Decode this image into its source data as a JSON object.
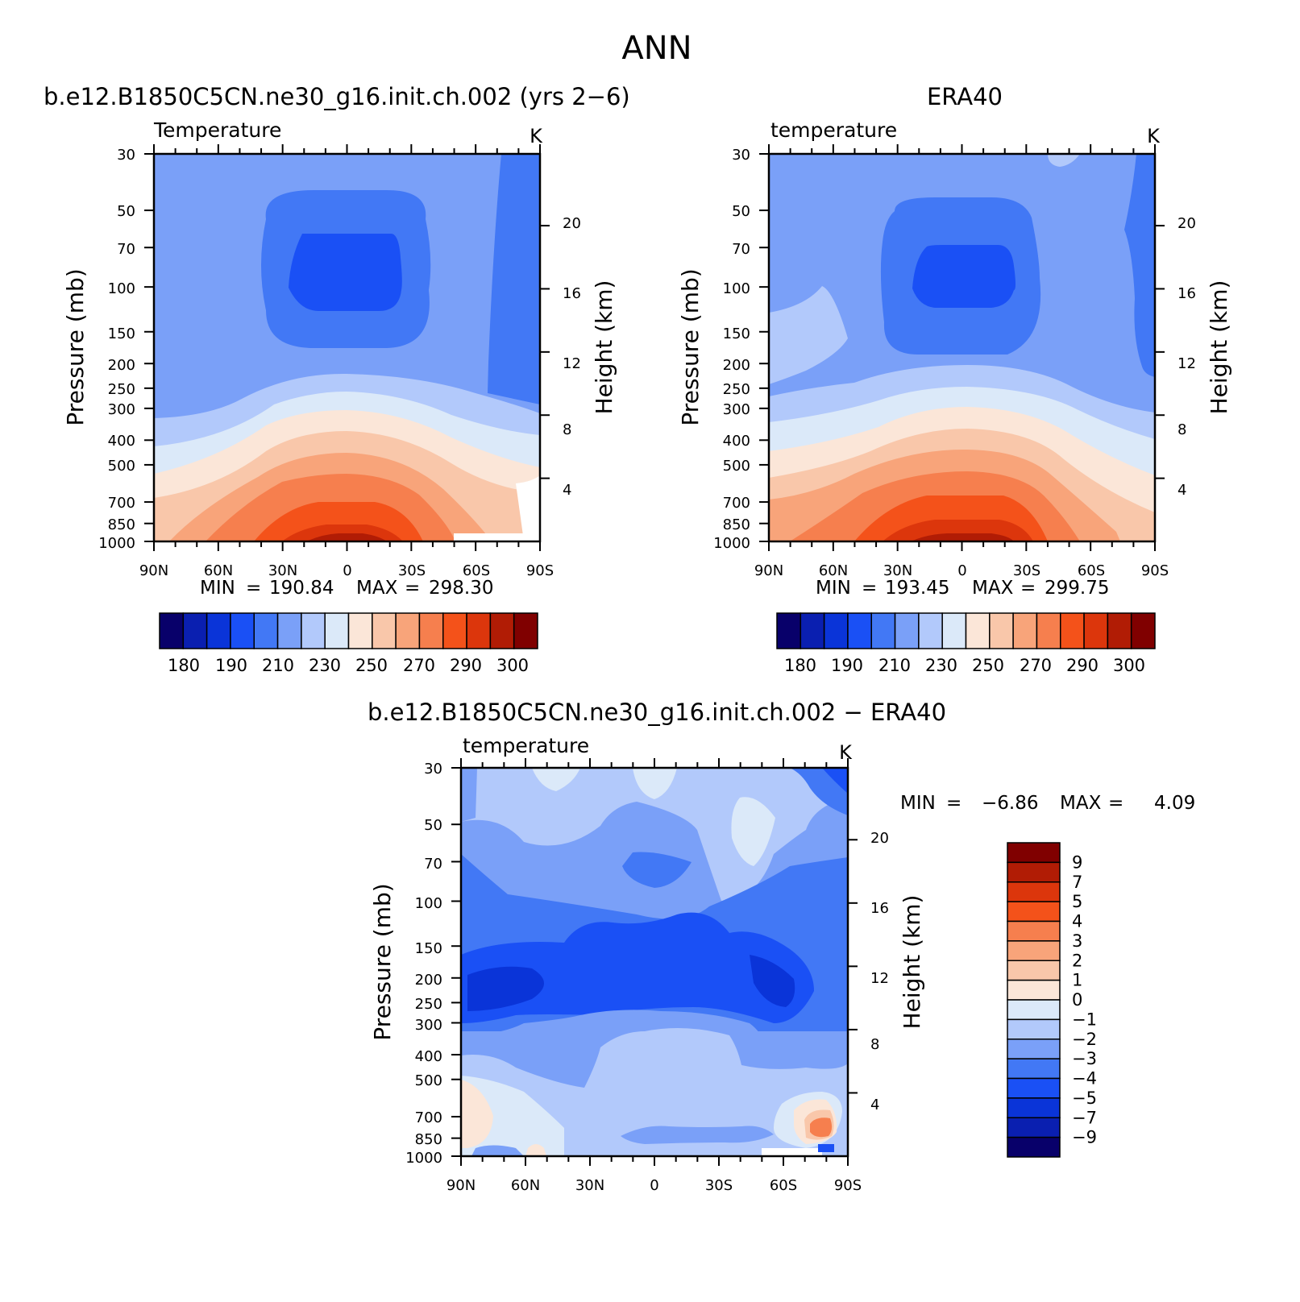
{
  "figure_title": "ANN",
  "panels": {
    "model": {
      "header": "b.e12.B1850C5CN.ne30_g16.init.ch.002 (yrs 2−6)",
      "variable": "Temperature",
      "units": "K",
      "min_label": "MIN",
      "max_label": "MAX",
      "min_value": "190.84",
      "max_value": "298.30"
    },
    "obs": {
      "header": "ERA40",
      "variable": "temperature",
      "units": "K",
      "min_label": "MIN",
      "max_label": "MAX",
      "min_value": "193.45",
      "max_value": "299.75"
    },
    "diff": {
      "header": "b.e12.B1850C5CN.ne30_g16.init.ch.002 − ERA40",
      "variable": "temperature",
      "units": "K",
      "min_label": "MIN",
      "max_label": "MAX",
      "min_value": "−6.86",
      "max_value": "4.09"
    }
  },
  "axes": {
    "y_left_label": "Pressure (mb)",
    "y_right_label": "Height (km)",
    "y_left_ticks": [
      "30",
      "50",
      "70",
      "100",
      "150",
      "200",
      "250",
      "300",
      "400",
      "500",
      "700",
      "850",
      "1000"
    ],
    "y_right_ticks": [
      "20",
      "16",
      "12",
      "8",
      "4"
    ],
    "x_ticks": [
      "90N",
      "60N",
      "30N",
      "0",
      "30S",
      "60S",
      "90S"
    ]
  },
  "colorbars": {
    "temperature_labels": [
      "180",
      "190",
      "210",
      "230",
      "250",
      "270",
      "290",
      "300"
    ],
    "difference_labels": [
      "9",
      "7",
      "5",
      "4",
      "3",
      "2",
      "1",
      "0",
      "−1",
      "−2",
      "−3",
      "−4",
      "−5",
      "−7",
      "−9"
    ],
    "colors": [
      "#08006a",
      "#0a1fb0",
      "#0a34d8",
      "#1a50f5",
      "#4278f5",
      "#7aa0f8",
      "#b2c9fb",
      "#dbe9f9",
      "#fbe6d8",
      "#f9c7aa",
      "#f8a47a",
      "#f67f4e",
      "#f4521a",
      "#dc360c",
      "#b11c05",
      "#800000"
    ]
  },
  "chart_data": [
    {
      "type": "heatmap",
      "title": "b.e12.B1850C5CN.ne30_g16.init.ch.002 (yrs 2−6)",
      "variable": "Temperature",
      "units": "K",
      "xlabel": "",
      "ylabel": "Pressure (mb)",
      "y2label": "Height (km)",
      "x_ticks": [
        "90N",
        "60N",
        "30N",
        "0",
        "30S",
        "60S",
        "90S"
      ],
      "y_ticks": [
        30,
        50,
        70,
        100,
        150,
        200,
        250,
        300,
        400,
        500,
        700,
        850,
        1000
      ],
      "y_scale": "log",
      "ylim": [
        1000,
        30
      ],
      "contour_levels": [
        180,
        185,
        190,
        200,
        210,
        220,
        230,
        240,
        250,
        260,
        270,
        280,
        290,
        295,
        300
      ],
      "min": 190.84,
      "max": 298.3
    },
    {
      "type": "heatmap",
      "title": "ERA40",
      "variable": "temperature",
      "units": "K",
      "xlabel": "",
      "ylabel": "Pressure (mb)",
      "y2label": "Height (km)",
      "x_ticks": [
        "90N",
        "60N",
        "30N",
        "0",
        "30S",
        "60S",
        "90S"
      ],
      "y_ticks": [
        30,
        50,
        70,
        100,
        150,
        200,
        250,
        300,
        400,
        500,
        700,
        850,
        1000
      ],
      "y_scale": "log",
      "ylim": [
        1000,
        30
      ],
      "contour_levels": [
        180,
        185,
        190,
        200,
        210,
        220,
        230,
        240,
        250,
        260,
        270,
        280,
        290,
        295,
        300
      ],
      "min": 193.45,
      "max": 299.75
    },
    {
      "type": "heatmap",
      "title": "b.e12.B1850C5CN.ne30_g16.init.ch.002 − ERA40",
      "variable": "temperature",
      "units": "K",
      "xlabel": "",
      "ylabel": "Pressure (mb)",
      "y2label": "Height (km)",
      "x_ticks": [
        "90N",
        "60N",
        "30N",
        "0",
        "30S",
        "60S",
        "90S"
      ],
      "y_ticks": [
        30,
        50,
        70,
        100,
        150,
        200,
        250,
        300,
        400,
        500,
        700,
        850,
        1000
      ],
      "y_scale": "log",
      "ylim": [
        1000,
        30
      ],
      "contour_levels": [
        -9,
        -7,
        -5,
        -4,
        -3,
        -2,
        -1,
        0,
        1,
        2,
        3,
        4,
        5,
        7,
        9
      ],
      "min": -6.86,
      "max": 4.09
    }
  ]
}
